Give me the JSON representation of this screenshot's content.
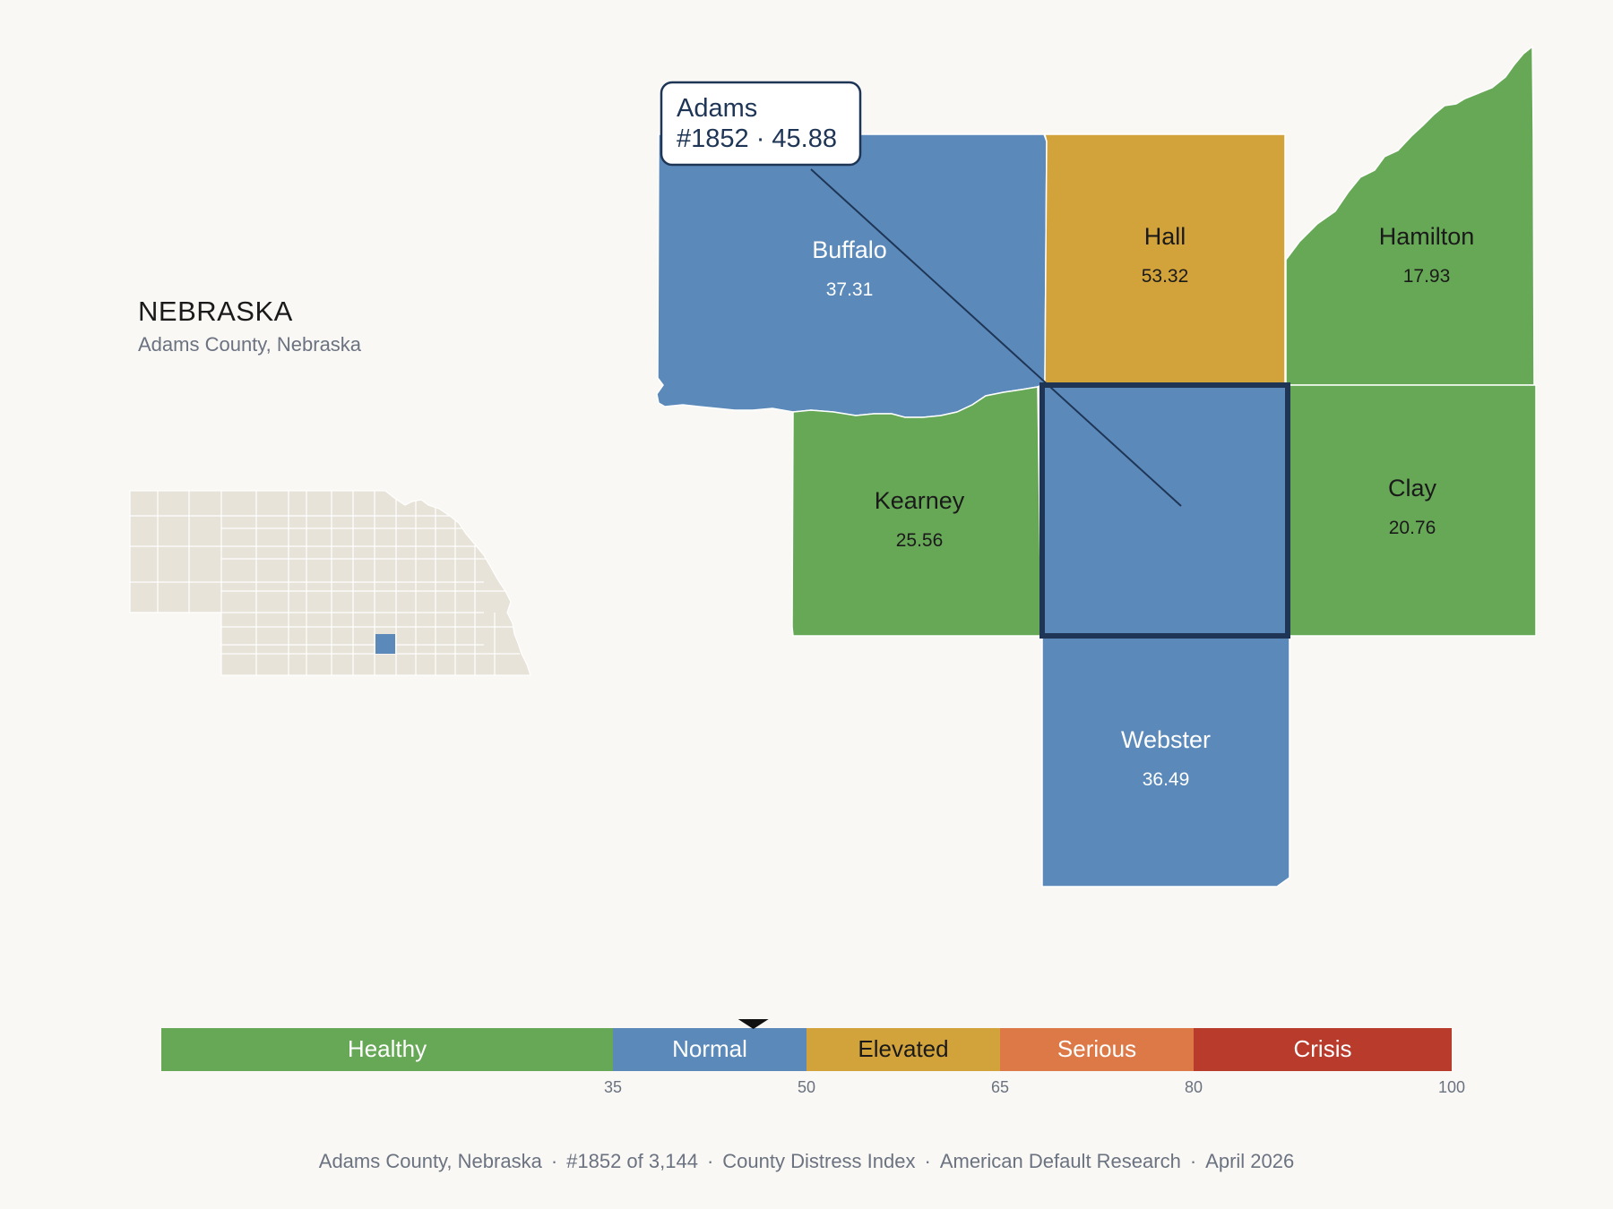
{
  "state": {
    "title": "NEBRASKA",
    "subtitle": "Adams County, Nebraska"
  },
  "tooltip": {
    "name": "Adams",
    "detail": "#1852 · 45.88"
  },
  "colors": {
    "healthy": "#67a857",
    "normal": "#5b8aba",
    "elevated": "#d3a33b",
    "serious": "#dd7847",
    "crisis": "#b93b2b",
    "inset_fill": "#e8e3d8",
    "focus_border": "#1e3556",
    "background": "#f9f8f5"
  },
  "counties": [
    {
      "id": "buffalo",
      "name": "Buffalo",
      "value": "37.31",
      "category": "normal"
    },
    {
      "id": "hall",
      "name": "Hall",
      "value": "53.32",
      "category": "elevated"
    },
    {
      "id": "hamilton",
      "name": "Hamilton",
      "value": "17.93",
      "category": "healthy"
    },
    {
      "id": "kearney",
      "name": "Kearney",
      "value": "25.56",
      "category": "healthy"
    },
    {
      "id": "adams",
      "name": "Adams",
      "value": "45.88",
      "category": "normal",
      "selected": true
    },
    {
      "id": "clay",
      "name": "Clay",
      "value": "20.76",
      "category": "healthy"
    },
    {
      "id": "webster",
      "name": "Webster",
      "value": "36.49",
      "category": "normal"
    }
  ],
  "legend": {
    "min": 0,
    "max": 100,
    "marker_value": 45.88,
    "segments": [
      {
        "label": "Healthy",
        "from": 0,
        "to": 35,
        "category": "healthy"
      },
      {
        "label": "Normal",
        "from": 35,
        "to": 50,
        "category": "normal"
      },
      {
        "label": "Elevated",
        "from": 50,
        "to": 65,
        "category": "elevated"
      },
      {
        "label": "Serious",
        "from": 65,
        "to": 80,
        "category": "serious"
      },
      {
        "label": "Crisis",
        "from": 80,
        "to": 100,
        "category": "crisis"
      }
    ],
    "ticks": [
      "35",
      "50",
      "65",
      "80",
      "100"
    ]
  },
  "footer": {
    "county": "Adams County, Nebraska",
    "rank": "#1852 of 3,144",
    "index": "County Distress Index",
    "source": "American Default Research",
    "date": "April 2026"
  }
}
